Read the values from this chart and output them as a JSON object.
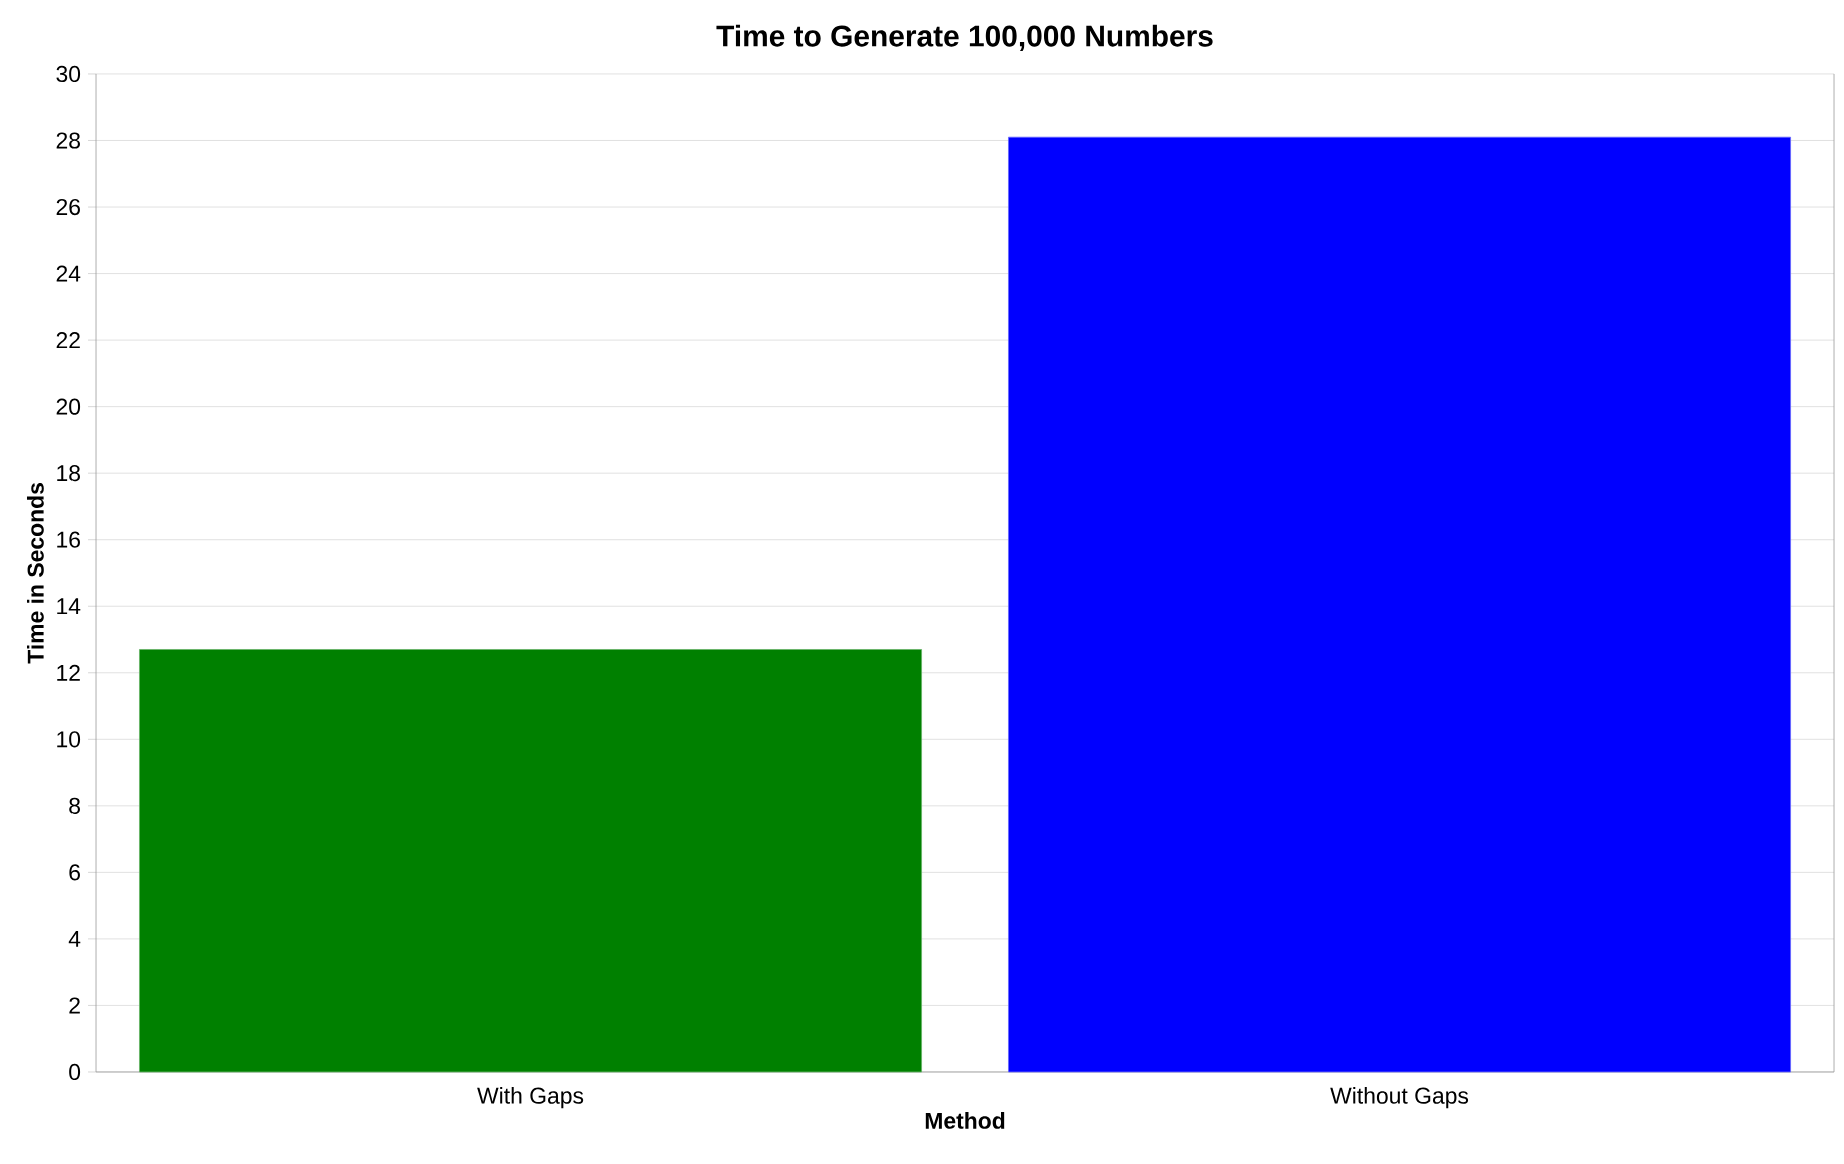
{
  "chart_data": {
    "type": "bar",
    "title": "Time to Generate 100,000 Numbers",
    "xlabel": "Method",
    "ylabel": "Time in Seconds",
    "categories": [
      "With Gaps",
      "Without Gaps"
    ],
    "values": [
      12.7,
      28.1
    ],
    "colors": [
      "#008000",
      "#0000ff"
    ],
    "ylim": [
      0,
      30
    ],
    "yticks": [
      0,
      2,
      4,
      6,
      8,
      10,
      12,
      14,
      16,
      18,
      20,
      22,
      24,
      26,
      28,
      30
    ],
    "grid": "y"
  }
}
